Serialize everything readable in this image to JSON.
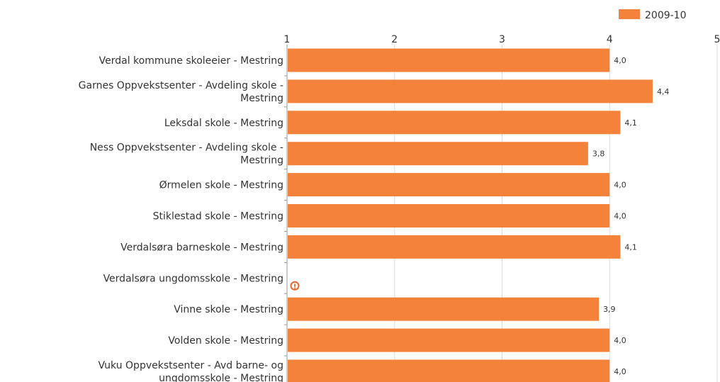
{
  "chart_data": {
    "type": "bar",
    "orientation": "horizontal",
    "categories": [
      [
        "Verdal kommune skoleeier - Mestring"
      ],
      [
        "Garnes Oppvekstsenter - Avdeling skole -",
        "Mestring"
      ],
      [
        "Leksdal skole - Mestring"
      ],
      [
        "Ness Oppvekstsenter - Avdeling skole -",
        "Mestring"
      ],
      [
        "Ørmelen skole - Mestring"
      ],
      [
        "Stiklestad skole - Mestring"
      ],
      [
        "Verdalsøra barneskole - Mestring"
      ],
      [
        "Verdalsøra ungdomsskole - Mestring"
      ],
      [
        "Vinne skole - Mestring"
      ],
      [
        "Volden skole - Mestring"
      ],
      [
        "Vuku Oppvekstsenter - Avd barne- og",
        "ungdomsskole - Mestring"
      ]
    ],
    "series": [
      {
        "name": "2009-10",
        "color": "#f5823a",
        "values": [
          4.0,
          4.4,
          4.1,
          3.8,
          4.0,
          4.0,
          4.1,
          null,
          3.9,
          4.0,
          4.0
        ],
        "value_labels": [
          "4,0",
          "4,4",
          "4,1",
          "3,8",
          "4,0",
          "4,0",
          "4,1",
          "",
          "3,9",
          "4,0",
          "4,0"
        ]
      }
    ],
    "xlim": [
      1,
      5
    ],
    "xticks": [
      "1",
      "2",
      "3",
      "4",
      "5"
    ],
    "grid": true,
    "legend": "top-right",
    "missing_marker": "!",
    "missing_marker_color": "#e8672a"
  }
}
